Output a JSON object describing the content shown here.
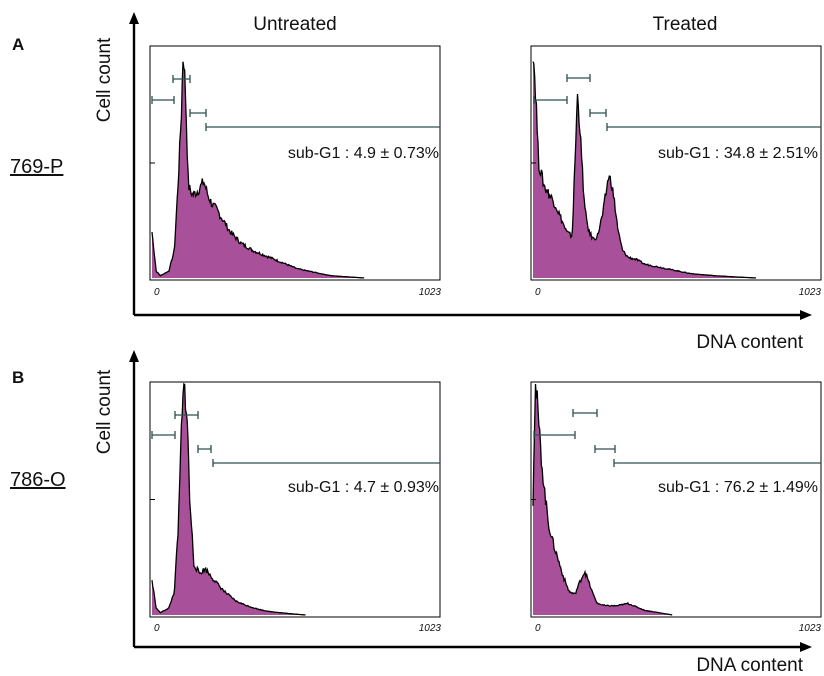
{
  "columns": {
    "left": "Untreated",
    "right": "Treated"
  },
  "panels": [
    {
      "letter": "A",
      "cell_line": "769-P",
      "y_axis_label": "Cell count",
      "x_axis_label": "DNA content"
    },
    {
      "letter": "B",
      "cell_line": "786-O",
      "y_axis_label": "Cell count",
      "x_axis_label": "DNA content"
    }
  ],
  "colors": {
    "fill": "#a8509a",
    "line": "#000000",
    "gate": "#2f4f4f"
  },
  "chart_data": [
    {
      "type": "area",
      "panel": "A",
      "cell_line": "769-P",
      "condition": "Untreated",
      "xlim": [
        0,
        1023
      ],
      "tick_labels": [
        "0",
        "1023"
      ],
      "annotation": "sub-G1 : 4.9 ± 0.73%",
      "x": [
        0,
        15,
        30,
        60,
        80,
        95,
        105,
        112,
        120,
        130,
        145,
        165,
        185,
        200,
        215,
        230,
        250,
        280,
        320,
        360,
        400,
        440,
        480,
        520,
        560,
        600,
        640,
        700,
        760
      ],
      "y": [
        20,
        3,
        1,
        3,
        12,
        45,
        72,
        100,
        80,
        40,
        36,
        38,
        42,
        36,
        32,
        30,
        26,
        20,
        15,
        12,
        10,
        8,
        6,
        4,
        3,
        2,
        1,
        0.5,
        0
      ]
    },
    {
      "type": "area",
      "panel": "A",
      "cell_line": "769-P",
      "condition": "Treated",
      "xlim": [
        0,
        1023
      ],
      "tick_labels": [
        "0",
        "1023"
      ],
      "annotation": "sub-G1 : 34.8 ± 2.51%",
      "x": [
        0,
        10,
        20,
        40,
        60,
        80,
        100,
        120,
        140,
        150,
        160,
        170,
        185,
        200,
        215,
        230,
        250,
        270,
        280,
        290,
        305,
        320,
        340,
        370,
        400,
        440,
        480,
        520,
        560,
        600,
        650,
        720,
        800
      ],
      "y": [
        100,
        80,
        50,
        40,
        36,
        32,
        26,
        20,
        18,
        50,
        82,
        60,
        30,
        20,
        17,
        18,
        28,
        44,
        42,
        34,
        20,
        12,
        9,
        8,
        6,
        5,
        4,
        3,
        2,
        1.5,
        1,
        0.5,
        0
      ]
    },
    {
      "type": "area",
      "panel": "B",
      "cell_line": "786-O",
      "condition": "Untreated",
      "xlim": [
        0,
        1023
      ],
      "tick_labels": [
        "0",
        "1023"
      ],
      "annotation": "sub-G1 : 4.7 ± 0.93%",
      "x": [
        0,
        15,
        30,
        60,
        80,
        95,
        105,
        115,
        125,
        135,
        150,
        170,
        190,
        210,
        230,
        260,
        300,
        340,
        380,
        420,
        460,
        500,
        550
      ],
      "y": [
        15,
        3,
        1,
        3,
        10,
        40,
        80,
        100,
        88,
        50,
        22,
        18,
        20,
        17,
        14,
        10,
        6,
        4,
        2.5,
        1.5,
        1,
        0.5,
        0
      ]
    },
    {
      "type": "area",
      "panel": "B",
      "cell_line": "786-O",
      "condition": "Treated",
      "xlim": [
        0,
        1023
      ],
      "tick_labels": [
        "0",
        "1023"
      ],
      "annotation": "sub-G1 : 76.2 ± 1.49%",
      "x": [
        0,
        8,
        15,
        25,
        40,
        55,
        70,
        90,
        110,
        130,
        150,
        170,
        185,
        200,
        215,
        230,
        260,
        300,
        340,
        360,
        380,
        400,
        450,
        500
      ],
      "y": [
        50,
        100,
        92,
        75,
        55,
        40,
        32,
        24,
        16,
        10,
        9,
        15,
        19,
        14,
        9,
        5,
        4,
        4,
        5,
        4,
        3,
        2,
        1,
        0
      ]
    }
  ]
}
